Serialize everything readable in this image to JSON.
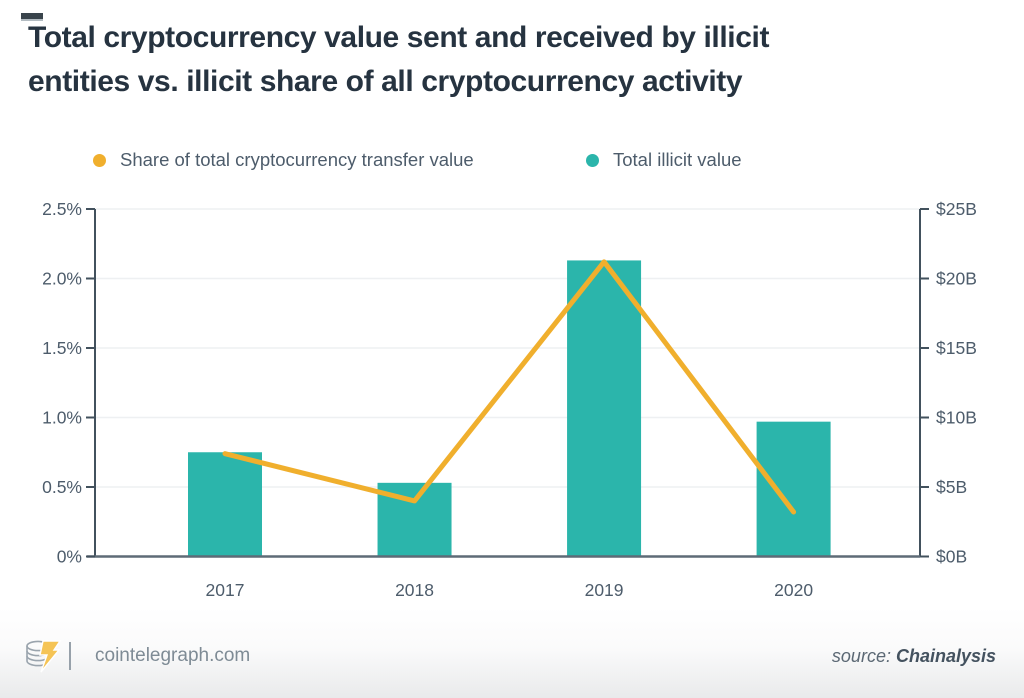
{
  "page": {
    "title_line1": "Total cryptocurrency value sent and received by illicit",
    "title_line2": "entities vs. illicit share of all cryptocurrency activity"
  },
  "legend": [
    {
      "label": "Share of total cryptocurrency transfer value",
      "color": "#f0af2d"
    },
    {
      "label": "Total illicit value",
      "color": "#2bb5ab"
    }
  ],
  "chart_data": {
    "type": "bar",
    "subtype": "combo bar + line, dual axis",
    "title": "Total cryptocurrency value sent and received by illicit entities vs. illicit share of all cryptocurrency activity",
    "categories": [
      "2017",
      "2018",
      "2019",
      "2020"
    ],
    "series": [
      {
        "name": "Total illicit value",
        "type": "bar",
        "axis": "right",
        "unit": "$B",
        "values": [
          7.5,
          5.3,
          21.3,
          9.7
        ],
        "color": "#2bb5ab"
      },
      {
        "name": "Share of total cryptocurrency transfer value",
        "type": "line",
        "axis": "left",
        "unit": "%",
        "values": [
          0.74,
          0.4,
          2.12,
          0.32
        ],
        "color": "#f0af2d"
      }
    ],
    "left_axis": {
      "ticks": [
        "2.5%",
        "2.0%",
        "1.5%",
        "1.0%",
        "0.5%",
        "0%"
      ],
      "min": 0,
      "max": 2.5
    },
    "right_axis": {
      "ticks": [
        "$25B",
        "$20B",
        "$15B",
        "$10B",
        "$5B",
        "$0B"
      ],
      "min": 0,
      "max": 25
    },
    "grid": true,
    "legend_position": "top",
    "style": {
      "grid_color": "#eef0f2",
      "side_axis_color": "#42515d",
      "bottom_axis_color": "#5e6b77",
      "tick_label_color": "#4d5c6b"
    }
  },
  "footer": {
    "site": "cointelegraph.com",
    "source_label": "source: ",
    "source_value": "Chainalysis"
  }
}
